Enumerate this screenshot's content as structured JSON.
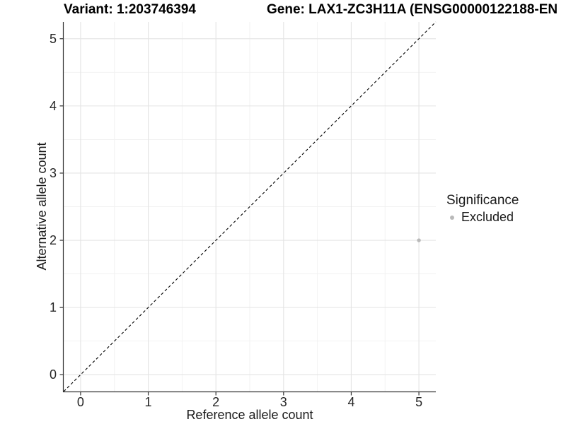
{
  "titles": {
    "variant": "Variant: 1:203746394",
    "gene": "Gene: LAX1-ZC3H11A (ENSG00000122188-EN"
  },
  "chart_data": {
    "type": "scatter",
    "xlabel": "Reference allele count",
    "ylabel": "Alternative allele count",
    "xlim": [
      -0.25,
      5.25
    ],
    "ylim": [
      -0.25,
      5.25
    ],
    "x_ticks": [
      0,
      1,
      2,
      3,
      4,
      5
    ],
    "y_ticks": [
      0,
      1,
      2,
      3,
      4,
      5
    ],
    "grid": "major and minor gridlines, minor at 0.5 steps",
    "minor_step": 0.5,
    "points": [
      {
        "x": 5,
        "y": 2,
        "significance": "Excluded"
      }
    ],
    "reference_line": {
      "type": "identity y=x",
      "style": "dashed",
      "color": "#000000"
    },
    "legend": {
      "title": "Significance",
      "position": "right",
      "entries": [
        {
          "label": "Excluded",
          "color": "#b9b9b9"
        }
      ]
    }
  },
  "colors": {
    "background": "#ffffff",
    "point": "#b9b9b9",
    "grid_major": "#e4e4e4",
    "grid_minor": "#f1f1f1",
    "axis": "#333333",
    "dashed_line": "#000000",
    "title_text": "#000000",
    "tick_text": "#262626"
  }
}
